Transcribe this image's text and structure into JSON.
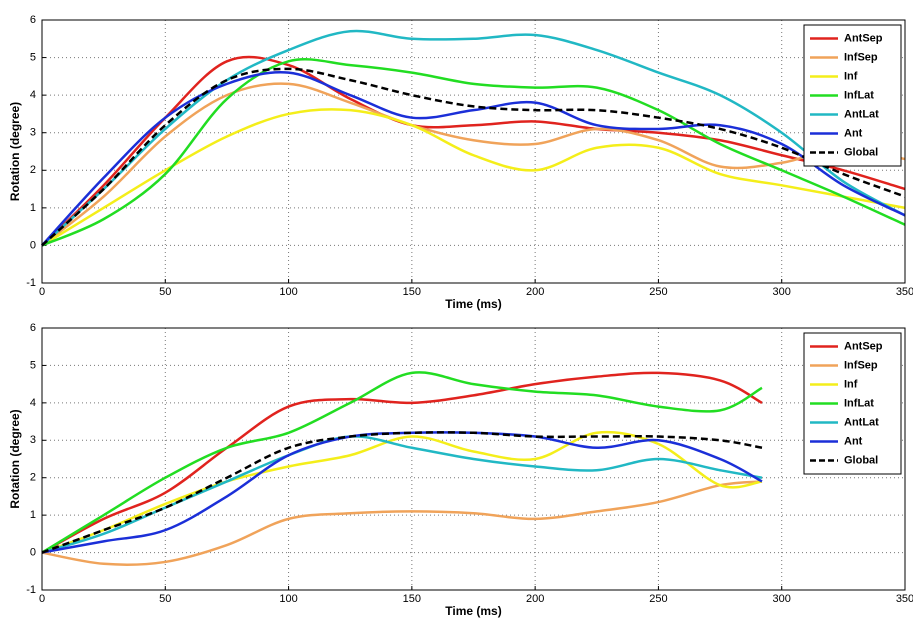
{
  "chart_data": [
    {
      "type": "line",
      "xlabel": "Time (ms)",
      "ylabel": "Rotation (degree)",
      "x": [
        0,
        25,
        50,
        75,
        100,
        125,
        150,
        175,
        200,
        225,
        250,
        275,
        300,
        325,
        350
      ],
      "xlim": [
        0,
        350
      ],
      "xticks": [
        0,
        50,
        100,
        150,
        200,
        250,
        300,
        350
      ],
      "ylim": [
        -1,
        6
      ],
      "yticks": [
        -1,
        0,
        1,
        2,
        3,
        4,
        5,
        6
      ],
      "grid": true,
      "legend": "northeast",
      "series": [
        {
          "name": "AntSep",
          "color": "#e0231e",
          "values": [
            0,
            1.6,
            3.4,
            4.9,
            4.8,
            3.9,
            3.2,
            3.2,
            3.3,
            3.1,
            3.0,
            2.8,
            2.4,
            2.0,
            1.5
          ]
        },
        {
          "name": "InfSep",
          "color": "#f0a35a",
          "values": [
            0,
            1.3,
            2.9,
            4.0,
            4.3,
            3.8,
            3.2,
            2.8,
            2.7,
            3.1,
            2.8,
            2.1,
            2.2,
            2.6,
            2.3
          ]
        },
        {
          "name": "Inf",
          "color": "#f4ee1a",
          "values": [
            0,
            1.0,
            2.0,
            2.9,
            3.5,
            3.6,
            3.2,
            2.4,
            2.0,
            2.6,
            2.6,
            1.9,
            1.6,
            1.3,
            1.0
          ]
        },
        {
          "name": "InfLat",
          "color": "#22dd22",
          "values": [
            0,
            0.7,
            1.9,
            3.9,
            4.9,
            4.8,
            4.6,
            4.3,
            4.2,
            4.2,
            3.6,
            2.7,
            2.0,
            1.3,
            0.55
          ]
        },
        {
          "name": "AntLat",
          "color": "#21b8c4",
          "values": [
            0,
            1.5,
            3.1,
            4.4,
            5.2,
            5.7,
            5.5,
            5.5,
            5.6,
            5.2,
            4.6,
            4.0,
            3.0,
            1.7,
            0.8
          ]
        },
        {
          "name": "Ant",
          "color": "#1b2fd8",
          "values": [
            0,
            1.8,
            3.4,
            4.3,
            4.6,
            4.0,
            3.4,
            3.6,
            3.8,
            3.2,
            3.1,
            3.2,
            2.7,
            1.6,
            0.8
          ]
        },
        {
          "name": "Global",
          "color": "#000000",
          "style": "dashed",
          "values": [
            0,
            1.5,
            3.2,
            4.4,
            4.7,
            4.4,
            4.0,
            3.7,
            3.6,
            3.6,
            3.4,
            3.1,
            2.6,
            1.9,
            1.3
          ]
        }
      ]
    },
    {
      "type": "line",
      "xlabel": "Time (ms)",
      "ylabel": "Rotation (degree)",
      "x": [
        0,
        25,
        50,
        75,
        100,
        125,
        150,
        175,
        200,
        225,
        250,
        275,
        292
      ],
      "xlim": [
        0,
        350
      ],
      "xticks": [
        0,
        50,
        100,
        150,
        200,
        250,
        300,
        350
      ],
      "ylim": [
        -1,
        6
      ],
      "yticks": [
        -1,
        0,
        1,
        2,
        3,
        4,
        5,
        6
      ],
      "grid": true,
      "legend": "northeast",
      "series": [
        {
          "name": "AntSep",
          "color": "#e0231e",
          "values": [
            0,
            0.9,
            1.6,
            2.8,
            3.9,
            4.1,
            4.0,
            4.2,
            4.5,
            4.7,
            4.8,
            4.6,
            4.0
          ]
        },
        {
          "name": "InfSep",
          "color": "#f0a35a",
          "values": [
            0,
            -0.3,
            -0.25,
            0.2,
            0.9,
            1.05,
            1.1,
            1.05,
            0.9,
            1.1,
            1.35,
            1.8,
            1.9
          ]
        },
        {
          "name": "Inf",
          "color": "#f4ee1a",
          "values": [
            0,
            0.6,
            1.3,
            1.9,
            2.3,
            2.6,
            3.1,
            2.7,
            2.5,
            3.2,
            2.9,
            1.8,
            1.9
          ]
        },
        {
          "name": "InfLat",
          "color": "#22dd22",
          "values": [
            0,
            1.0,
            2.0,
            2.8,
            3.2,
            4.0,
            4.8,
            4.5,
            4.3,
            4.2,
            3.9,
            3.8,
            4.4
          ]
        },
        {
          "name": "AntLat",
          "color": "#21b8c4",
          "values": [
            0,
            0.5,
            1.2,
            1.9,
            2.6,
            3.1,
            2.8,
            2.5,
            2.3,
            2.2,
            2.5,
            2.2,
            2.0
          ]
        },
        {
          "name": "Ant",
          "color": "#1b2fd8",
          "values": [
            0,
            0.3,
            0.6,
            1.5,
            2.6,
            3.1,
            3.2,
            3.2,
            3.1,
            2.8,
            3.0,
            2.5,
            1.9
          ]
        },
        {
          "name": "Global",
          "color": "#000000",
          "style": "dashed",
          "values": [
            0,
            0.6,
            1.2,
            2.0,
            2.8,
            3.1,
            3.2,
            3.2,
            3.1,
            3.1,
            3.1,
            3.0,
            2.8
          ]
        }
      ]
    }
  ]
}
